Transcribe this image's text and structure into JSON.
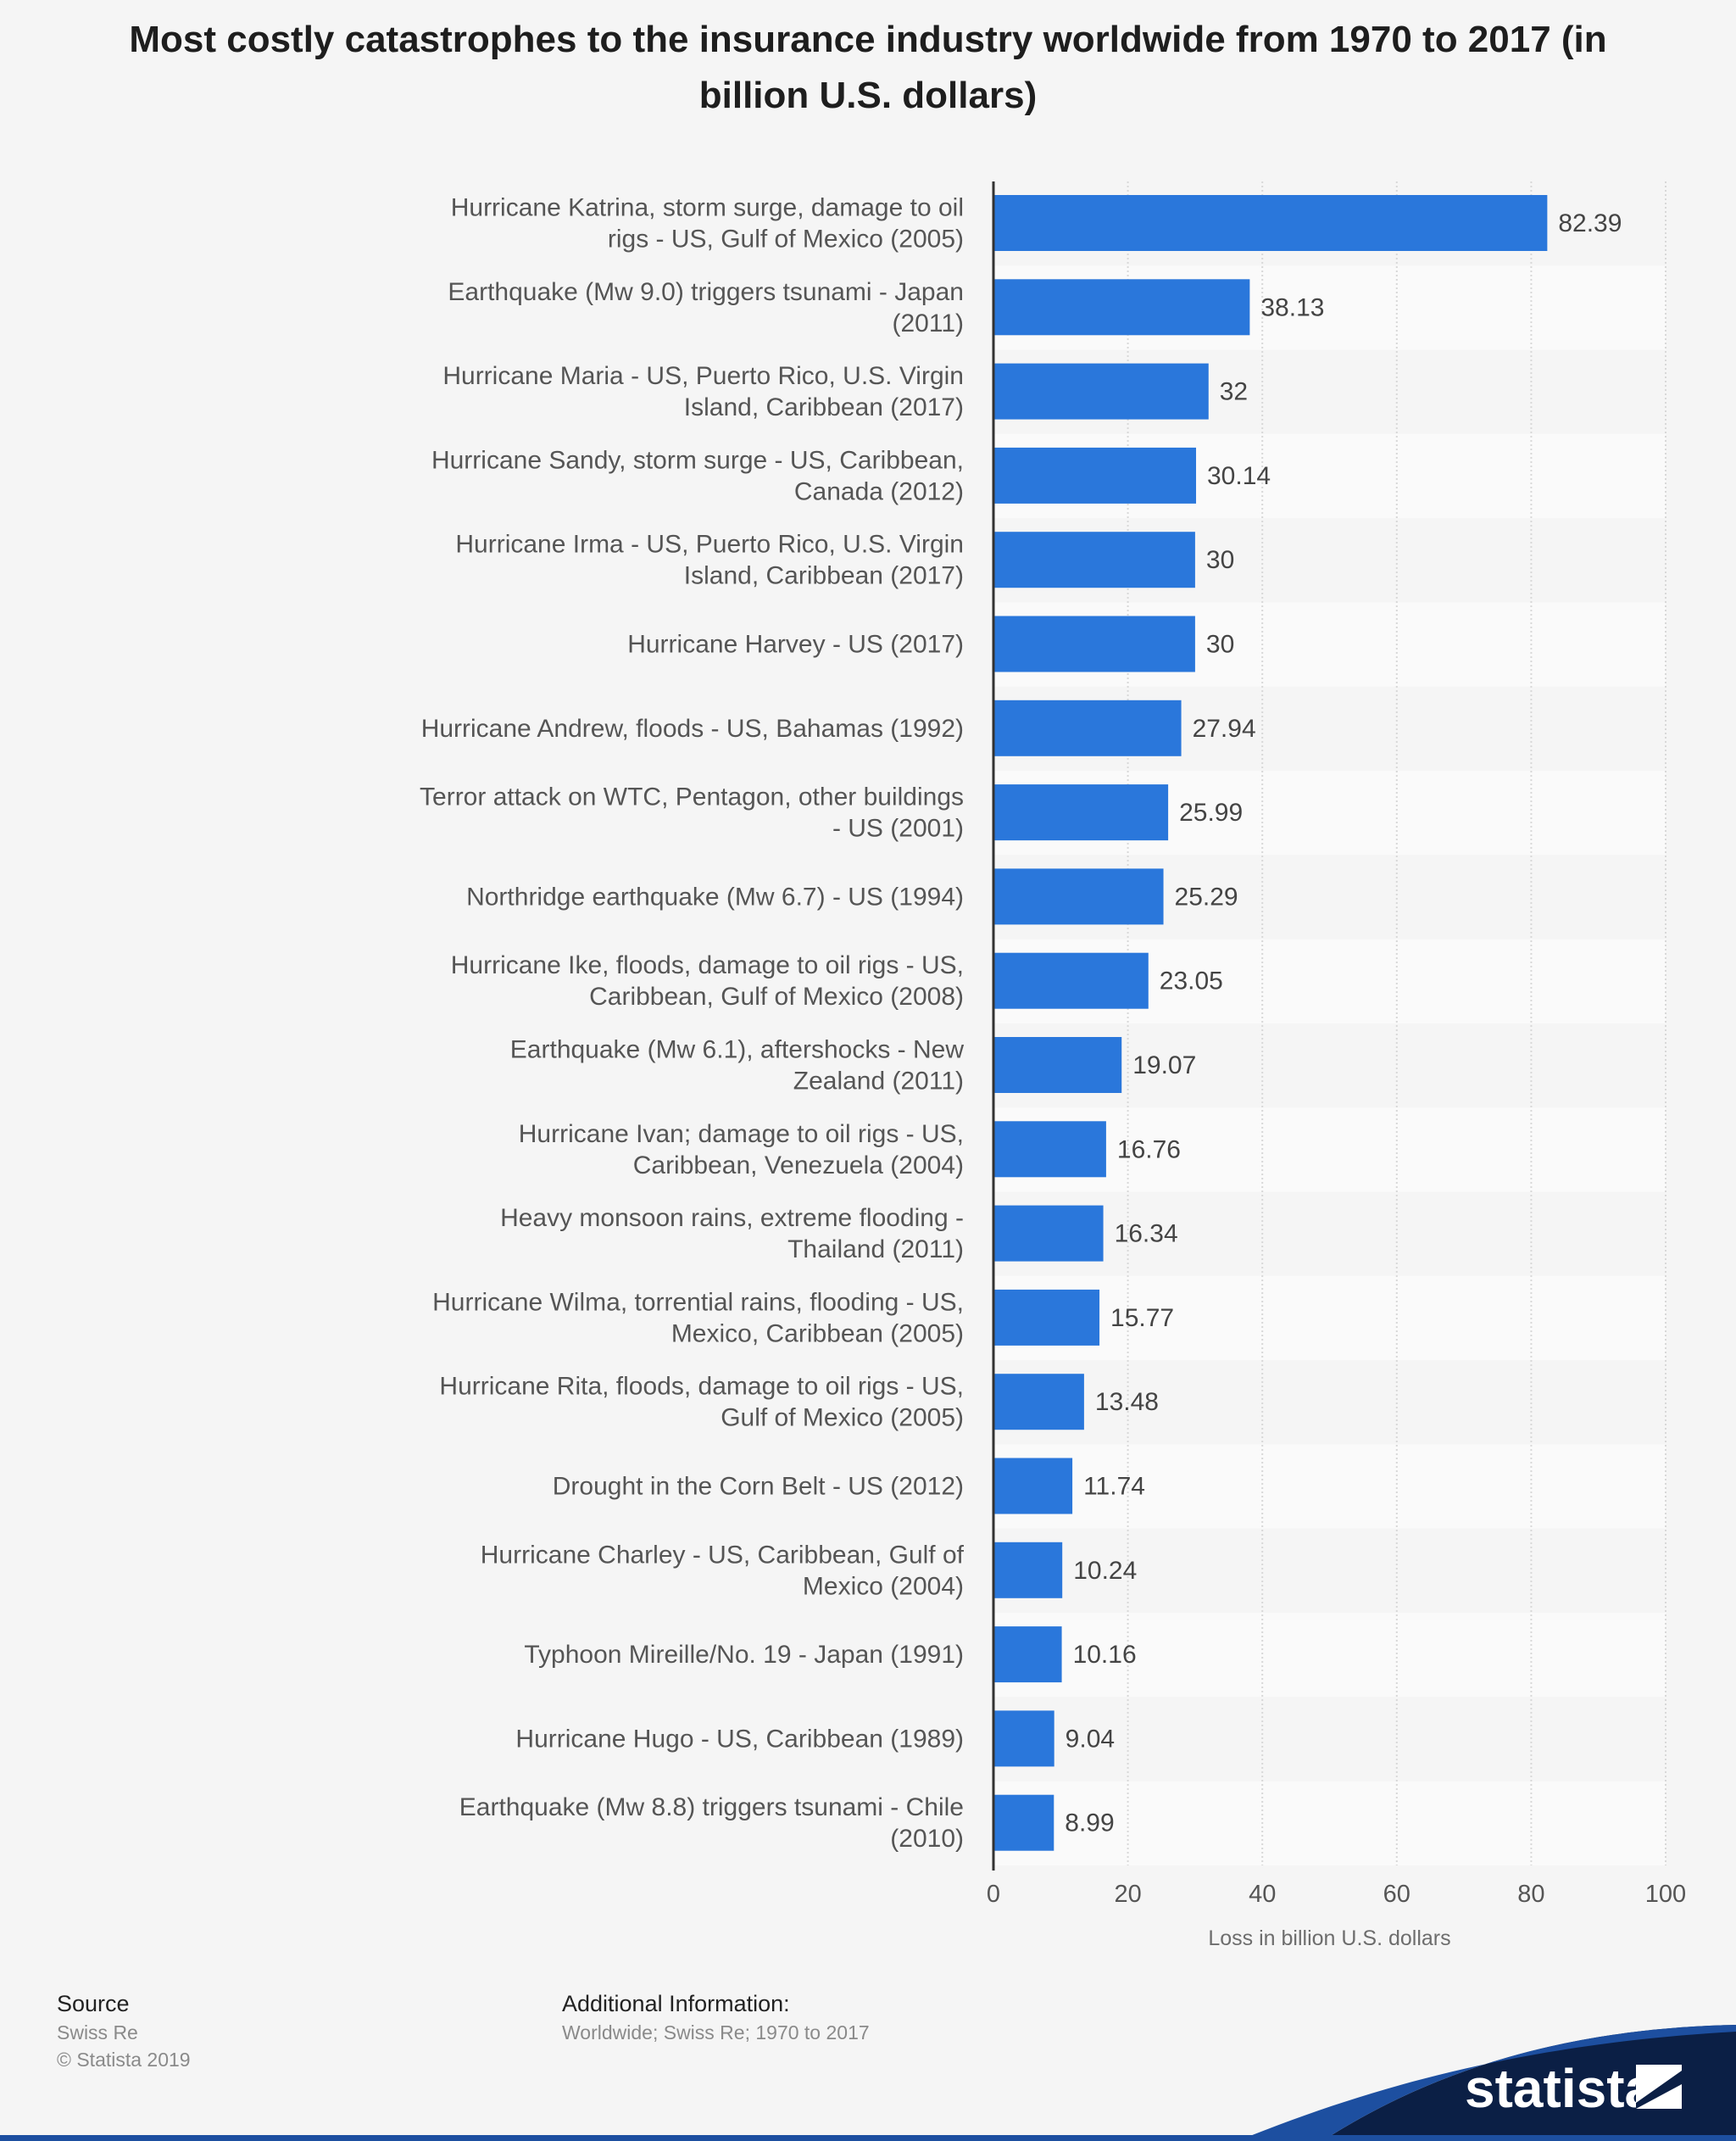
{
  "chart_data": {
    "type": "bar",
    "orientation": "horizontal",
    "title": "Most costly catastrophes to the insurance industry worldwide from 1970 to 2017 (in billion U.S. dollars)",
    "xlabel": "Loss in billion U.S. dollars",
    "ylabel": "",
    "xlim": [
      0,
      100
    ],
    "xticks": [
      0,
      20,
      40,
      60,
      80,
      100
    ],
    "grid": true,
    "bar_color": "#2a77db",
    "categories": [
      [
        "Hurricane Katrina, storm surge, damage to oil",
        "rigs - US, Gulf of Mexico (2005)"
      ],
      [
        "Earthquake (Mw 9.0) triggers tsunami - Japan",
        "(2011)"
      ],
      [
        "Hurricane Maria - US, Puerto Rico, U.S. Virgin",
        "Island, Caribbean (2017)"
      ],
      [
        "Hurricane Sandy, storm surge - US, Caribbean,",
        "Canada (2012)"
      ],
      [
        "Hurricane Irma - US, Puerto Rico, U.S. Virgin",
        "Island, Caribbean (2017)"
      ],
      [
        "Hurricane Harvey - US (2017)"
      ],
      [
        "Hurricane Andrew, floods - US, Bahamas (1992)"
      ],
      [
        "Terror attack on WTC, Pentagon, other buildings",
        "- US (2001)"
      ],
      [
        "Northridge earthquake (Mw 6.7) - US (1994)"
      ],
      [
        "Hurricane Ike, floods, damage to oil rigs - US,",
        "Caribbean, Gulf of Mexico (2008)"
      ],
      [
        "Earthquake (Mw 6.1), aftershocks - New",
        "Zealand (2011)"
      ],
      [
        "Hurricane Ivan; damage to oil rigs - US,",
        "Caribbean, Venezuela (2004)"
      ],
      [
        "Heavy monsoon rains, extreme flooding -",
        "Thailand (2011)"
      ],
      [
        "Hurricane Wilma, torrential rains, flooding - US,",
        "Mexico, Caribbean (2005)"
      ],
      [
        "Hurricane Rita, floods, damage to oil rigs - US,",
        "Gulf of Mexico (2005)"
      ],
      [
        "Drought in the Corn Belt - US (2012)"
      ],
      [
        "Hurricane Charley - US, Caribbean, Gulf of",
        "Mexico (2004)"
      ],
      [
        "Typhoon Mireille/No. 19 - Japan (1991)"
      ],
      [
        "Hurricane Hugo - US, Caribbean (1989)"
      ],
      [
        "Earthquake (Mw 8.8) triggers tsunami - Chile",
        "(2010)"
      ]
    ],
    "values": [
      82.39,
      38.13,
      32,
      30.14,
      30,
      30,
      27.94,
      25.99,
      25.29,
      23.05,
      19.07,
      16.76,
      16.34,
      15.77,
      13.48,
      11.74,
      10.24,
      10.16,
      9.04,
      8.99
    ],
    "value_labels": [
      "82.39",
      "38.13",
      "32",
      "30.14",
      "30",
      "30",
      "27.94",
      "25.99",
      "25.29",
      "23.05",
      "19.07",
      "16.76",
      "16.34",
      "15.77",
      "13.48",
      "11.74",
      "10.24",
      "10.16",
      "9.04",
      "8.99"
    ]
  },
  "footer": {
    "source_heading": "Source",
    "source_name": "Swiss Re",
    "copyright": "© Statista 2019",
    "additional_heading": "Additional Information:",
    "additional_text": "Worldwide; Swiss Re; 1970 to 2017",
    "brand": "statista"
  }
}
